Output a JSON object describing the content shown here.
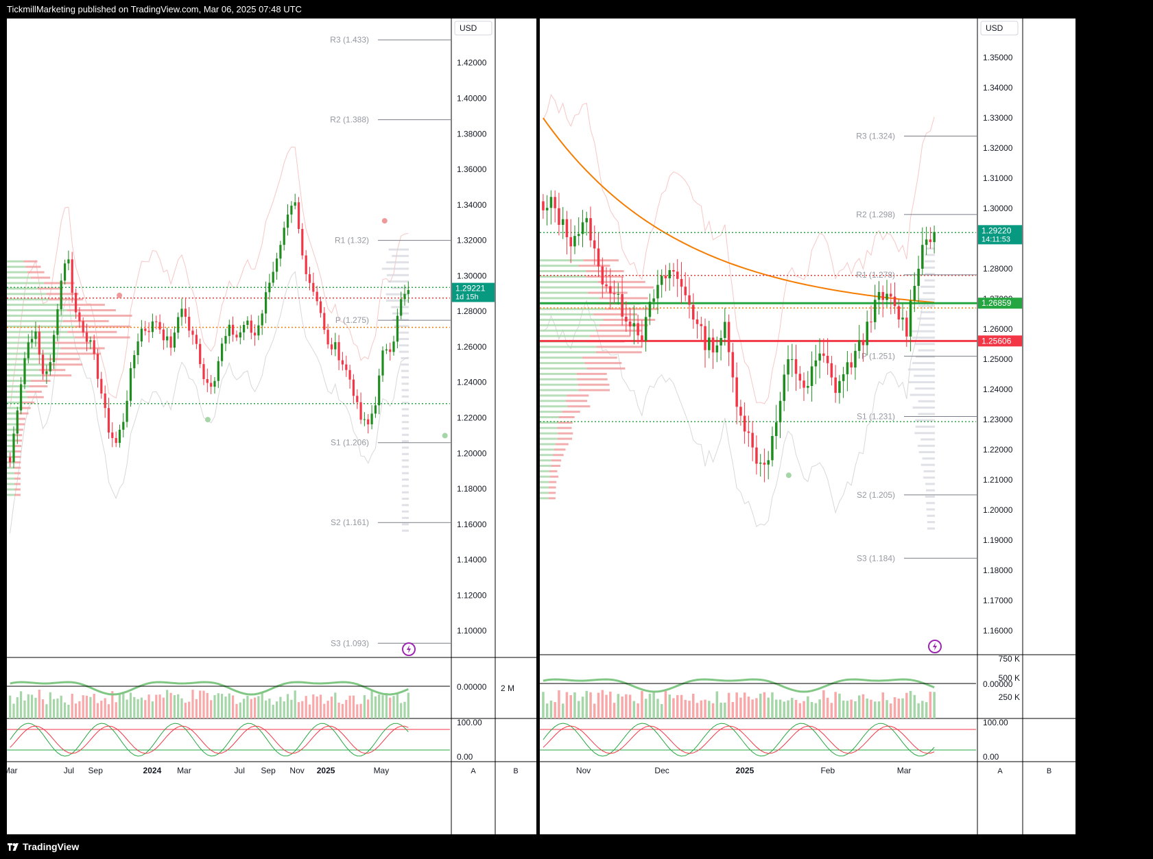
{
  "header": {
    "text": "TickmillMarketing published on TradingView.com, Mar 06, 2025 07:48 UTC"
  },
  "footer": {
    "brand": "TradingView"
  },
  "chart_data": [
    {
      "type": "candlestick",
      "title": "",
      "currency": "USD",
      "price_axis": [
        "1.42000",
        "1.40000",
        "1.38000",
        "1.36000",
        "1.34000",
        "1.32000",
        "1.30000",
        "1.28000",
        "1.26000",
        "1.24000",
        "1.22000",
        "1.20000",
        "1.18000",
        "1.16000",
        "1.14000",
        "1.12000",
        "1.10000"
      ],
      "ylim": [
        1.085,
        1.445
      ],
      "time_axis": [
        {
          "label": "Mar",
          "frac": 0.008
        },
        {
          "label": "Jul",
          "frac": 0.14
        },
        {
          "label": "Sep",
          "frac": 0.2
        },
        {
          "label": "2024",
          "frac": 0.328,
          "bold": true
        },
        {
          "label": "Mar",
          "frac": 0.4
        },
        {
          "label": "Jul",
          "frac": 0.525
        },
        {
          "label": "Sep",
          "frac": 0.59
        },
        {
          "label": "Nov",
          "frac": 0.655
        },
        {
          "label": "2025",
          "frac": 0.72,
          "bold": true
        },
        {
          "label": "May",
          "frac": 0.845
        }
      ],
      "pivots": [
        {
          "label": "R3 (1.433)",
          "value": 1.433
        },
        {
          "label": "R2 (1.388)",
          "value": 1.388
        },
        {
          "label": "R1 (1.32)",
          "value": 1.32
        },
        {
          "label": "P (1.275)",
          "value": 1.275
        },
        {
          "label": "S1 (1.206)",
          "value": 1.206
        },
        {
          "label": "S2 (1.161)",
          "value": 1.161
        },
        {
          "label": "S3 (1.093)",
          "value": 1.093
        }
      ],
      "price_label": {
        "value": "1.29221",
        "countdown": "1d 15h",
        "color": "#089981"
      },
      "dotted_levels": [
        {
          "value": 1.2935,
          "color": "#26a641"
        },
        {
          "value": 1.2875,
          "color": "#e53935"
        },
        {
          "value": 1.271,
          "color": "#f57c00"
        },
        {
          "value": 1.228,
          "color": "#26a641"
        }
      ],
      "candle_count": 110,
      "price_path": [
        1.195,
        1.23,
        1.26,
        1.27,
        1.245,
        1.25,
        1.29,
        1.315,
        1.28,
        1.27,
        1.26,
        1.24,
        1.215,
        1.205,
        1.22,
        1.25,
        1.27,
        1.27,
        1.275,
        1.265,
        1.26,
        1.285,
        1.27,
        1.26,
        1.24,
        1.24,
        1.26,
        1.27,
        1.265,
        1.275,
        1.265,
        1.28,
        1.3,
        1.31,
        1.33,
        1.342,
        1.31,
        1.295,
        1.285,
        1.26,
        1.26,
        1.25,
        1.24,
        1.22,
        1.215,
        1.23,
        1.26,
        1.26,
        1.285,
        1.292
      ],
      "volume_scale_label": "0.00000",
      "volume_right_label": "2 M",
      "stoch_labels": [
        "100.00",
        "0.00"
      ],
      "pane_buttons": [
        "A",
        "B"
      ],
      "markers": [
        {
          "kind": "dot",
          "color": "#ef9a9a",
          "t": 0.94,
          "value": 1.331
        },
        {
          "kind": "dot",
          "color": "#ef9a9a",
          "t": 0.28,
          "value": 1.289
        },
        {
          "kind": "dot",
          "color": "#a5d6a7",
          "t": 0.5,
          "value": 1.219
        },
        {
          "kind": "dot",
          "color": "#a5d6a7",
          "t": 1.09,
          "value": 1.21
        }
      ]
    },
    {
      "type": "candlestick",
      "title": "",
      "currency": "USD",
      "price_axis": [
        "1.35000",
        "1.34000",
        "1.33000",
        "1.32000",
        "1.31000",
        "1.30000",
        "1.29000",
        "1.28000",
        "1.27000",
        "1.26000",
        "1.25000",
        "1.24000",
        "1.23000",
        "1.22000",
        "1.21000",
        "1.20000",
        "1.19000",
        "1.18000",
        "1.17000",
        "1.16000"
      ],
      "ylim": [
        1.152,
        1.363
      ],
      "time_axis": [
        {
          "label": "Nov",
          "frac": 0.1
        },
        {
          "label": "Dec",
          "frac": 0.28
        },
        {
          "label": "2025",
          "frac": 0.47,
          "bold": true
        },
        {
          "label": "Feb",
          "frac": 0.66
        },
        {
          "label": "Mar",
          "frac": 0.835
        }
      ],
      "pivots": [
        {
          "label": "R3 (1.324)",
          "value": 1.324
        },
        {
          "label": "R2 (1.298)",
          "value": 1.298
        },
        {
          "label": "R1 (1.278)",
          "value": 1.278
        },
        {
          "label": "P (1.251)",
          "value": 1.251
        },
        {
          "label": "S1 (1.231)",
          "value": 1.231
        },
        {
          "label": "S2 (1.205)",
          "value": 1.205
        },
        {
          "label": "S3 (1.184)",
          "value": 1.184
        }
      ],
      "price_label": {
        "value": "1.29220",
        "countdown": "14:11:53",
        "color": "#089981"
      },
      "extra_labels": [
        {
          "value": "1.26859",
          "price": 1.26859,
          "color": "#26a641"
        },
        {
          "value": "1.25606",
          "price": 1.25606,
          "color": "#f23645"
        }
      ],
      "dotted_levels": [
        {
          "value": 1.292,
          "color": "#26a641"
        },
        {
          "value": 1.2778,
          "color": "#e53935"
        },
        {
          "value": 1.267,
          "color": "#f57c00"
        },
        {
          "value": 1.2293,
          "color": "#26a641"
        }
      ],
      "solid_levels": [
        {
          "value": 1.26859,
          "color": "#26a641"
        },
        {
          "value": 1.25606,
          "color": "#f23645"
        }
      ],
      "candle_count": 100,
      "price_path": [
        1.298,
        1.302,
        1.295,
        1.29,
        1.293,
        1.295,
        1.28,
        1.275,
        1.27,
        1.265,
        1.262,
        1.258,
        1.27,
        1.275,
        1.28,
        1.275,
        1.27,
        1.26,
        1.255,
        1.255,
        1.26,
        1.24,
        1.23,
        1.22,
        1.215,
        1.22,
        1.235,
        1.25,
        1.245,
        1.24,
        1.25,
        1.25,
        1.24,
        1.245,
        1.25,
        1.255,
        1.265,
        1.27,
        1.27,
        1.265,
        1.26,
        1.28,
        1.29,
        1.2922
      ],
      "volume_scale_label": "0.00000",
      "volume_axis_labels": [
        "750 K",
        "500 K",
        "250 K"
      ],
      "stoch_labels": [
        "100.00",
        "0.00"
      ],
      "pane_buttons": [
        "A",
        "B"
      ],
      "markers": [
        {
          "kind": "dot",
          "color": "#a5d6a7",
          "t": 0.63,
          "value": 1.2115
        }
      ]
    }
  ]
}
